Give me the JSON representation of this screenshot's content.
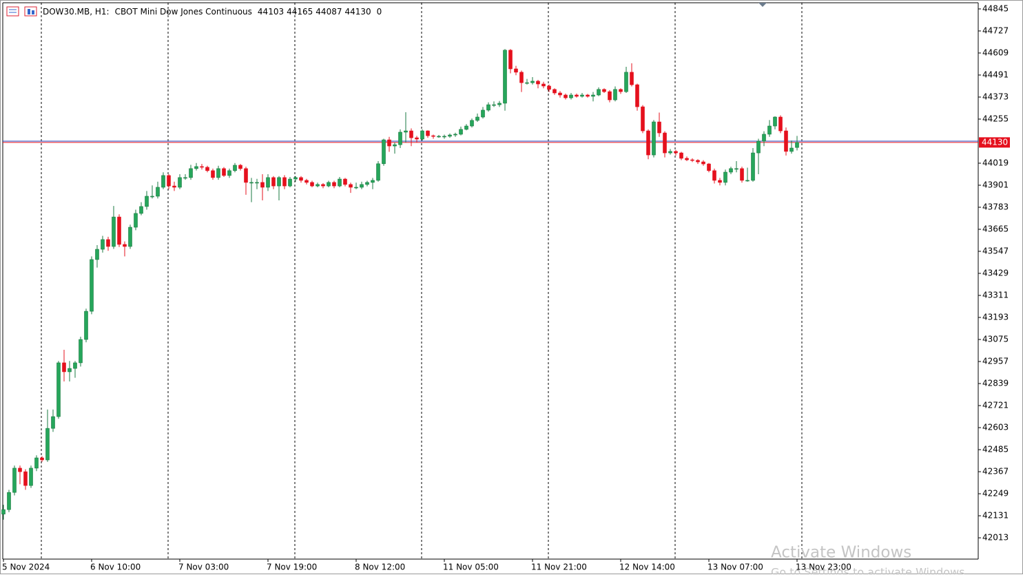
{
  "chart_data": {
    "type": "candlestick",
    "symbol": "DOW30.MB, H1:",
    "title": "CBOT Mini Dow Jones Continuous",
    "header_values": [
      44103,
      44165,
      44087,
      44130,
      0
    ],
    "up_color": "#26a65b",
    "down_color": "#e5101d",
    "last_price": 44130,
    "last_price_color": "#e5101d",
    "ask_price": 44137,
    "ask_color": "#1f3fbf",
    "ylim": [
      41899,
      44878
    ],
    "yticks": [
      44845,
      44727,
      44609,
      44491,
      44373,
      44255,
      44019,
      43901,
      43783,
      43665,
      43547,
      43429,
      43311,
      43193,
      43075,
      42957,
      42839,
      42721,
      42603,
      42485,
      42367,
      42249,
      42131,
      42013
    ],
    "categories": [
      "5 Nov 2024",
      null,
      null,
      null,
      null,
      null,
      null,
      null,
      null,
      null,
      null,
      null,
      null,
      null,
      null,
      null,
      "6 Nov 10:00",
      null,
      null,
      null,
      null,
      null,
      null,
      null,
      null,
      null,
      null,
      null,
      null,
      null,
      null,
      null,
      "7 Nov 03:00",
      null,
      null,
      null,
      null,
      null,
      null,
      null,
      null,
      null,
      null,
      null,
      null,
      null,
      null,
      null,
      "7 Nov 19:00",
      null,
      null,
      null,
      null,
      null,
      null,
      null,
      null,
      null,
      null,
      null,
      null,
      null,
      null,
      null,
      "8 Nov 12:00",
      null,
      null,
      null,
      null,
      null,
      null,
      null,
      null,
      null,
      null,
      null,
      null,
      null,
      null,
      null,
      "11 Nov 05:00",
      null,
      null,
      null,
      null,
      null,
      null,
      null,
      null,
      null,
      null,
      null,
      null,
      null,
      null,
      null,
      "11 Nov 21:00",
      null,
      null,
      null,
      null,
      null,
      null,
      null,
      null,
      null,
      null,
      null,
      null,
      null,
      null,
      null,
      "12 Nov 14:00",
      null,
      null,
      null,
      null,
      null,
      null,
      null,
      null,
      null,
      null,
      null,
      null,
      null,
      null,
      null,
      "13 Nov 07:00",
      null,
      null,
      null,
      null,
      null,
      null,
      null,
      null,
      null,
      null,
      null,
      null,
      null,
      null,
      null,
      "13 Nov 23:00"
    ],
    "ohlc": [
      [
        42140,
        42190,
        42110,
        42164
      ],
      [
        42164,
        42270,
        42150,
        42256
      ],
      [
        42256,
        42400,
        42240,
        42386
      ],
      [
        42386,
        42400,
        42300,
        42367
      ],
      [
        42367,
        42380,
        42270,
        42293
      ],
      [
        42293,
        42400,
        42280,
        42386
      ],
      [
        42386,
        42455,
        42370,
        42441
      ],
      [
        42441,
        42450,
        42420,
        42430
      ],
      [
        42430,
        42700,
        42420,
        42599
      ],
      [
        42599,
        42700,
        42580,
        42662
      ],
      [
        42662,
        42960,
        42650,
        42950
      ],
      [
        42950,
        43020,
        42850,
        42902
      ],
      [
        42902,
        42960,
        42850,
        42920
      ],
      [
        42920,
        42960,
        42870,
        42950
      ],
      [
        42950,
        43090,
        42930,
        43075
      ],
      [
        43075,
        43240,
        43060,
        43226
      ],
      [
        43226,
        43520,
        43210,
        43503
      ],
      [
        43503,
        43580,
        43460,
        43558
      ],
      [
        43558,
        43630,
        43540,
        43610
      ],
      [
        43610,
        43625,
        43550,
        43573
      ],
      [
        43573,
        43790,
        43560,
        43731
      ],
      [
        43731,
        43745,
        43570,
        43584
      ],
      [
        43584,
        43600,
        43520,
        43573
      ],
      [
        43573,
        43690,
        43560,
        43676
      ],
      [
        43676,
        43770,
        43660,
        43750
      ],
      [
        43750,
        43810,
        43740,
        43787
      ],
      [
        43787,
        43870,
        43770,
        43842
      ],
      [
        43842,
        43900,
        43830,
        43842
      ],
      [
        43842,
        43920,
        43830,
        43890
      ],
      [
        43890,
        43970,
        43880,
        43953
      ],
      [
        43953,
        43960,
        43880,
        43897
      ],
      [
        43897,
        43920,
        43870,
        43890
      ],
      [
        43890,
        43960,
        43880,
        43942
      ],
      [
        43942,
        43960,
        43930,
        43942
      ],
      [
        43942,
        44010,
        43930,
        43990
      ],
      [
        43990,
        44020,
        43980,
        44001
      ],
      [
        44001,
        44015,
        43985,
        43997
      ],
      [
        43997,
        44005,
        43970,
        43979
      ],
      [
        43979,
        43990,
        43930,
        43942
      ],
      [
        43942,
        44005,
        43930,
        43990
      ],
      [
        43990,
        43998,
        43945,
        43953
      ],
      [
        43953,
        43990,
        43940,
        43979
      ],
      [
        43979,
        44020,
        43970,
        44008
      ],
      [
        44008,
        44015,
        43980,
        43990
      ],
      [
        43990,
        44000,
        43850,
        43916
      ],
      [
        43916,
        43940,
        43810,
        43916
      ],
      [
        43916,
        43935,
        43880,
        43916
      ],
      [
        43916,
        43960,
        43820,
        43890
      ],
      [
        43890,
        43960,
        43870,
        43942
      ],
      [
        43942,
        43950,
        43880,
        43897
      ],
      [
        43897,
        43950,
        43820,
        43942
      ],
      [
        43942,
        43955,
        43880,
        43897
      ],
      [
        43897,
        43945,
        43890,
        43934
      ],
      [
        43934,
        43950,
        43920,
        43942
      ],
      [
        43942,
        43950,
        43915,
        43927
      ],
      [
        43927,
        43935,
        43905,
        43916
      ],
      [
        43916,
        43925,
        43890,
        43897
      ],
      [
        43897,
        43915,
        43890,
        43905
      ],
      [
        43905,
        43912,
        43885,
        43897
      ],
      [
        43897,
        43925,
        43890,
        43916
      ],
      [
        43916,
        43925,
        43885,
        43897
      ],
      [
        43897,
        43945,
        43890,
        43934
      ],
      [
        43934,
        43940,
        43895,
        43905
      ],
      [
        43905,
        43915,
        43860,
        43890
      ],
      [
        43890,
        43915,
        43880,
        43890
      ],
      [
        43890,
        43920,
        43880,
        43905
      ],
      [
        43905,
        43925,
        43895,
        43916
      ],
      [
        43916,
        43940,
        43880,
        43927
      ],
      [
        43927,
        44030,
        43920,
        44016
      ],
      [
        44016,
        44150,
        44005,
        44144
      ],
      [
        44144,
        44160,
        44080,
        44111
      ],
      [
        44111,
        44130,
        44070,
        44118
      ],
      [
        44118,
        44200,
        44100,
        44185
      ],
      [
        44185,
        44292,
        44130,
        44192
      ],
      [
        44192,
        44205,
        44110,
        44155
      ],
      [
        44155,
        44165,
        44130,
        44148
      ],
      [
        44148,
        44200,
        44140,
        44192
      ],
      [
        44192,
        44195,
        44155,
        44166
      ],
      [
        44166,
        44172,
        44150,
        44163
      ],
      [
        44163,
        44170,
        44155,
        44163
      ],
      [
        44163,
        44172,
        44150,
        44163
      ],
      [
        44163,
        44178,
        44155,
        44170
      ],
      [
        44170,
        44182,
        44160,
        44174
      ],
      [
        44174,
        44215,
        44168,
        44200
      ],
      [
        44200,
        44228,
        44195,
        44218
      ],
      [
        44218,
        44258,
        44210,
        44248
      ],
      [
        44248,
        44285,
        44240,
        44266
      ],
      [
        44266,
        44320,
        44258,
        44303
      ],
      [
        44303,
        44345,
        44295,
        44332
      ],
      [
        44332,
        44350,
        44320,
        44332
      ],
      [
        44332,
        44352,
        44320,
        44340
      ],
      [
        44340,
        44630,
        44300,
        44624
      ],
      [
        44624,
        44630,
        44500,
        44524
      ],
      [
        44524,
        44540,
        44490,
        44506
      ],
      [
        44506,
        44515,
        44400,
        44450
      ],
      [
        44450,
        44470,
        44440,
        44450
      ],
      [
        44450,
        44480,
        44440,
        44458
      ],
      [
        44458,
        44465,
        44420,
        44443
      ],
      [
        44443,
        44455,
        44420,
        44432
      ],
      [
        44432,
        44440,
        44400,
        44414
      ],
      [
        44414,
        44420,
        44385,
        44395
      ],
      [
        44395,
        44405,
        44370,
        44384
      ],
      [
        44384,
        44392,
        44360,
        44369
      ],
      [
        44369,
        44395,
        44360,
        44384
      ],
      [
        44384,
        44392,
        44370,
        44377
      ],
      [
        44377,
        44395,
        44370,
        44384
      ],
      [
        44384,
        44390,
        44370,
        44377
      ],
      [
        44377,
        44400,
        44350,
        44384
      ],
      [
        44384,
        44425,
        44378,
        44414
      ],
      [
        44414,
        44420,
        44395,
        44402
      ],
      [
        44402,
        44410,
        44345,
        44358
      ],
      [
        44358,
        44430,
        44350,
        44414
      ],
      [
        44414,
        44420,
        44390,
        44402
      ],
      [
        44402,
        44535,
        44395,
        44506
      ],
      [
        44506,
        44554,
        44430,
        44439
      ],
      [
        44439,
        44445,
        44300,
        44321
      ],
      [
        44321,
        44330,
        44180,
        44192
      ],
      [
        44192,
        44200,
        44040,
        44063
      ],
      [
        44063,
        44250,
        44050,
        44240
      ],
      [
        44240,
        44290,
        44160,
        44181
      ],
      [
        44181,
        44190,
        44050,
        44074
      ],
      [
        44074,
        44095,
        44065,
        44082
      ],
      [
        44082,
        44090,
        44060,
        44074
      ],
      [
        44074,
        44080,
        44035,
        44045
      ],
      [
        44045,
        44055,
        44030,
        44037
      ],
      [
        44037,
        44045,
        44025,
        44034
      ],
      [
        44034,
        44040,
        44015,
        44026
      ],
      [
        44026,
        44035,
        44005,
        44015
      ],
      [
        44015,
        44020,
        43970,
        43979
      ],
      [
        43979,
        43990,
        43910,
        43927
      ],
      [
        43927,
        43940,
        43900,
        43916
      ],
      [
        43916,
        43985,
        43900,
        43971
      ],
      [
        43971,
        44000,
        43960,
        43990
      ],
      [
        43990,
        44030,
        43970,
        43990
      ],
      [
        43990,
        44000,
        43915,
        43927
      ],
      [
        43927,
        43995,
        43920,
        43927
      ],
      [
        43927,
        44100,
        43920,
        44074
      ],
      [
        44074,
        44150,
        43960,
        44137
      ],
      [
        44137,
        44190,
        44110,
        44174
      ],
      [
        44174,
        44250,
        44160,
        44218
      ],
      [
        44218,
        44270,
        44200,
        44266
      ],
      [
        44266,
        44275,
        44180,
        44192
      ],
      [
        44192,
        44210,
        44060,
        44082
      ],
      [
        44082,
        44140,
        44070,
        44100
      ],
      [
        44103,
        44165,
        44087,
        44130
      ]
    ]
  },
  "overlay": {
    "title": "Activate Windows",
    "subtitle": "Go to Settings to activate Windows."
  }
}
